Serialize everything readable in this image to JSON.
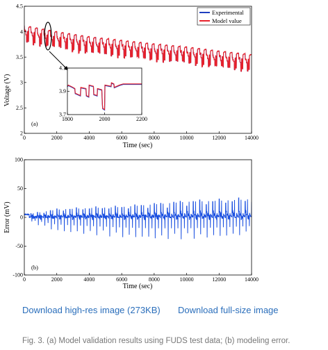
{
  "chart_data": [
    {
      "type": "line",
      "panel_label": "(a)",
      "xlabel": "Time (sec)",
      "ylabel": "Voltage (V)",
      "xlim": [
        0,
        14000
      ],
      "ylim": [
        2,
        4.5
      ],
      "xticks": [
        0,
        2000,
        4000,
        6000,
        8000,
        10000,
        12000,
        14000
      ],
      "yticks": [
        2,
        2.5,
        3,
        3.5,
        4,
        4.5
      ],
      "ytick_labels": [
        "2",
        "2.5",
        "3",
        "3.5",
        "4",
        "4.5"
      ],
      "legend_position": "top-right",
      "grid": false,
      "series": [
        {
          "name": "Experimental",
          "color": "#1f3fbf"
        },
        {
          "name": "Model value",
          "color": "#e8202a"
        }
      ],
      "baseline_voltage": {
        "x": [
          0,
          2000,
          4000,
          6000,
          8000,
          10000,
          12000,
          14000
        ],
        "y": [
          4.12,
          4.0,
          3.9,
          3.83,
          3.76,
          3.7,
          3.62,
          3.55
        ]
      },
      "pulse_depth_v": 0.35,
      "cycle_period_s": 400,
      "inset": {
        "xlim": [
          1800,
          2200
        ],
        "ylim": [
          3.7,
          4.1
        ],
        "xticks": [
          1800,
          2000,
          2200
        ],
        "yticks": [
          3.7,
          3.9,
          4.1
        ],
        "ytick_labels": [
          "3.7",
          "3.9",
          "4.1"
        ],
        "points": {
          "x": [
            1800,
            1805,
            1830,
            1840,
            1842,
            1870,
            1872,
            1900,
            1902,
            1915,
            1917,
            1940,
            1942,
            1960,
            1962,
            1985,
            1988,
            1990,
            2000,
            2002,
            2035,
            2037,
            2050,
            2052,
            2080,
            2100,
            2150,
            2200
          ],
          "y": [
            3.94,
            3.95,
            3.93,
            3.92,
            3.88,
            3.86,
            3.93,
            3.92,
            3.86,
            3.85,
            3.95,
            3.94,
            3.87,
            3.86,
            3.92,
            3.91,
            3.79,
            3.75,
            3.74,
            3.95,
            3.94,
            3.97,
            3.96,
            3.93,
            3.95,
            3.96,
            3.96,
            3.96
          ]
        }
      }
    },
    {
      "type": "line",
      "panel_label": "(b)",
      "xlabel": "Time (sec)",
      "ylabel": "Error (mV)",
      "xlim": [
        0,
        14000
      ],
      "ylim": [
        -100,
        100
      ],
      "xticks": [
        0,
        2000,
        4000,
        6000,
        8000,
        10000,
        12000,
        14000
      ],
      "yticks": [
        -100,
        -50,
        0,
        50,
        100
      ],
      "grid": false,
      "series": [
        {
          "color": "#1a4fe0",
          "envelope_x": [
            0,
            2000,
            4000,
            6000,
            8000,
            10000,
            12000,
            14000
          ],
          "envelope_upper": [
            5,
            15,
            18,
            20,
            25,
            30,
            32,
            35
          ],
          "envelope_lower": [
            -5,
            -25,
            -30,
            -35,
            -38,
            -38,
            -35,
            -30
          ]
        }
      ]
    }
  ],
  "links": {
    "hires": "Download high-res image (273KB)",
    "fullsize": "Download full-size image"
  },
  "caption": "Fig. 3. (a) Model validation results using FUDS test data; (b) modeling error."
}
